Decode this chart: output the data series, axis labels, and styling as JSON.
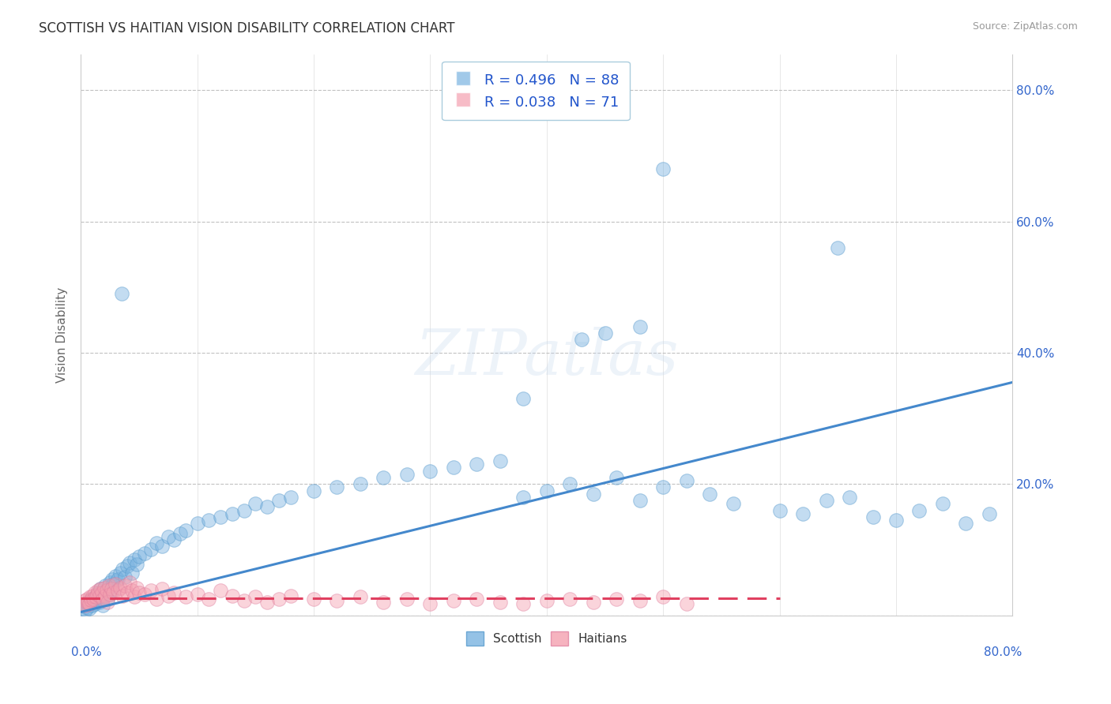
{
  "title": "SCOTTISH VS HAITIAN VISION DISABILITY CORRELATION CHART",
  "source": "Source: ZipAtlas.com",
  "ylabel": "Vision Disability",
  "xlim": [
    0,
    0.8
  ],
  "ylim": [
    0,
    0.855
  ],
  "legend_text_color": "#2255cc",
  "scottish_color": "#7ab3e0",
  "haitian_color": "#f4a0b0",
  "scottish_line_color": "#4488cc",
  "haitian_line_color": "#e04060",
  "watermark_text": "ZIPatlas",
  "scottish_points": [
    [
      0.002,
      0.01
    ],
    [
      0.003,
      0.015
    ],
    [
      0.004,
      0.008
    ],
    [
      0.005,
      0.012
    ],
    [
      0.006,
      0.018
    ],
    [
      0.007,
      0.01
    ],
    [
      0.008,
      0.02
    ],
    [
      0.009,
      0.025
    ],
    [
      0.01,
      0.015
    ],
    [
      0.011,
      0.022
    ],
    [
      0.012,
      0.018
    ],
    [
      0.013,
      0.03
    ],
    [
      0.014,
      0.025
    ],
    [
      0.015,
      0.035
    ],
    [
      0.016,
      0.02
    ],
    [
      0.017,
      0.04
    ],
    [
      0.018,
      0.028
    ],
    [
      0.019,
      0.015
    ],
    [
      0.02,
      0.032
    ],
    [
      0.021,
      0.045
    ],
    [
      0.022,
      0.038
    ],
    [
      0.023,
      0.025
    ],
    [
      0.024,
      0.042
    ],
    [
      0.025,
      0.05
    ],
    [
      0.026,
      0.035
    ],
    [
      0.027,
      0.055
    ],
    [
      0.028,
      0.048
    ],
    [
      0.03,
      0.06
    ],
    [
      0.032,
      0.055
    ],
    [
      0.034,
      0.065
    ],
    [
      0.036,
      0.07
    ],
    [
      0.038,
      0.058
    ],
    [
      0.04,
      0.075
    ],
    [
      0.042,
      0.08
    ],
    [
      0.044,
      0.065
    ],
    [
      0.046,
      0.085
    ],
    [
      0.048,
      0.078
    ],
    [
      0.05,
      0.09
    ],
    [
      0.055,
      0.095
    ],
    [
      0.06,
      0.1
    ],
    [
      0.065,
      0.11
    ],
    [
      0.07,
      0.105
    ],
    [
      0.075,
      0.12
    ],
    [
      0.08,
      0.115
    ],
    [
      0.085,
      0.125
    ],
    [
      0.09,
      0.13
    ],
    [
      0.1,
      0.14
    ],
    [
      0.11,
      0.145
    ],
    [
      0.12,
      0.15
    ],
    [
      0.13,
      0.155
    ],
    [
      0.14,
      0.16
    ],
    [
      0.15,
      0.17
    ],
    [
      0.16,
      0.165
    ],
    [
      0.17,
      0.175
    ],
    [
      0.18,
      0.18
    ],
    [
      0.2,
      0.19
    ],
    [
      0.22,
      0.195
    ],
    [
      0.24,
      0.2
    ],
    [
      0.26,
      0.21
    ],
    [
      0.28,
      0.215
    ],
    [
      0.3,
      0.22
    ],
    [
      0.32,
      0.225
    ],
    [
      0.34,
      0.23
    ],
    [
      0.36,
      0.235
    ],
    [
      0.38,
      0.18
    ],
    [
      0.4,
      0.19
    ],
    [
      0.42,
      0.2
    ],
    [
      0.44,
      0.185
    ],
    [
      0.46,
      0.21
    ],
    [
      0.48,
      0.175
    ],
    [
      0.5,
      0.195
    ],
    [
      0.52,
      0.205
    ],
    [
      0.54,
      0.185
    ],
    [
      0.56,
      0.17
    ],
    [
      0.6,
      0.16
    ],
    [
      0.62,
      0.155
    ],
    [
      0.64,
      0.175
    ],
    [
      0.66,
      0.18
    ],
    [
      0.68,
      0.15
    ],
    [
      0.7,
      0.145
    ],
    [
      0.72,
      0.16
    ],
    [
      0.74,
      0.17
    ],
    [
      0.76,
      0.14
    ],
    [
      0.78,
      0.155
    ],
    [
      0.035,
      0.49
    ],
    [
      0.5,
      0.68
    ],
    [
      0.65,
      0.56
    ],
    [
      0.38,
      0.33
    ],
    [
      0.43,
      0.42
    ],
    [
      0.45,
      0.43
    ],
    [
      0.48,
      0.44
    ]
  ],
  "haitian_points": [
    [
      0.002,
      0.018
    ],
    [
      0.003,
      0.022
    ],
    [
      0.004,
      0.015
    ],
    [
      0.005,
      0.025
    ],
    [
      0.006,
      0.02
    ],
    [
      0.007,
      0.018
    ],
    [
      0.008,
      0.028
    ],
    [
      0.009,
      0.023
    ],
    [
      0.01,
      0.03
    ],
    [
      0.011,
      0.025
    ],
    [
      0.012,
      0.035
    ],
    [
      0.013,
      0.028
    ],
    [
      0.014,
      0.032
    ],
    [
      0.015,
      0.038
    ],
    [
      0.016,
      0.03
    ],
    [
      0.017,
      0.04
    ],
    [
      0.018,
      0.035
    ],
    [
      0.019,
      0.025
    ],
    [
      0.02,
      0.042
    ],
    [
      0.021,
      0.03
    ],
    [
      0.022,
      0.038
    ],
    [
      0.023,
      0.02
    ],
    [
      0.024,
      0.045
    ],
    [
      0.025,
      0.032
    ],
    [
      0.026,
      0.04
    ],
    [
      0.028,
      0.035
    ],
    [
      0.03,
      0.048
    ],
    [
      0.032,
      0.038
    ],
    [
      0.034,
      0.042
    ],
    [
      0.036,
      0.03
    ],
    [
      0.038,
      0.045
    ],
    [
      0.04,
      0.035
    ],
    [
      0.042,
      0.05
    ],
    [
      0.044,
      0.038
    ],
    [
      0.046,
      0.028
    ],
    [
      0.048,
      0.042
    ],
    [
      0.05,
      0.035
    ],
    [
      0.055,
      0.032
    ],
    [
      0.06,
      0.038
    ],
    [
      0.065,
      0.025
    ],
    [
      0.07,
      0.04
    ],
    [
      0.075,
      0.03
    ],
    [
      0.08,
      0.035
    ],
    [
      0.09,
      0.028
    ],
    [
      0.1,
      0.032
    ],
    [
      0.11,
      0.025
    ],
    [
      0.12,
      0.038
    ],
    [
      0.13,
      0.03
    ],
    [
      0.14,
      0.022
    ],
    [
      0.15,
      0.028
    ],
    [
      0.16,
      0.02
    ],
    [
      0.17,
      0.025
    ],
    [
      0.18,
      0.03
    ],
    [
      0.2,
      0.025
    ],
    [
      0.22,
      0.022
    ],
    [
      0.24,
      0.028
    ],
    [
      0.26,
      0.02
    ],
    [
      0.28,
      0.025
    ],
    [
      0.3,
      0.018
    ],
    [
      0.32,
      0.022
    ],
    [
      0.34,
      0.025
    ],
    [
      0.36,
      0.02
    ],
    [
      0.38,
      0.018
    ],
    [
      0.4,
      0.022
    ],
    [
      0.42,
      0.025
    ],
    [
      0.44,
      0.02
    ],
    [
      0.46,
      0.025
    ],
    [
      0.48,
      0.022
    ],
    [
      0.5,
      0.028
    ],
    [
      0.52,
      0.018
    ]
  ]
}
